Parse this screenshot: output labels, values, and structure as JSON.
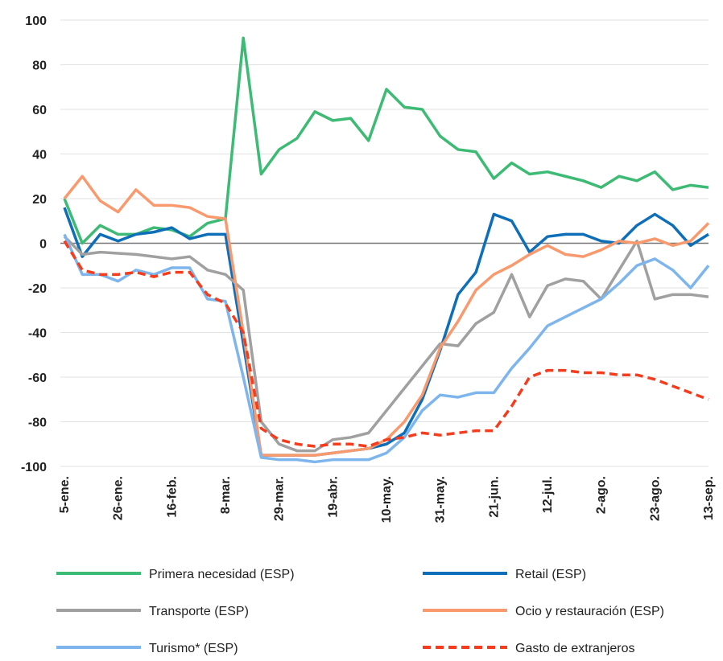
{
  "chart_data": {
    "type": "line",
    "categories": [
      "5-ene.",
      null,
      null,
      "26-ene.",
      null,
      null,
      "16-feb.",
      null,
      null,
      "8-mar.",
      null,
      null,
      "29-mar.",
      null,
      null,
      "19-abr.",
      null,
      null,
      "10-may.",
      null,
      null,
      "31-may.",
      null,
      null,
      "21-jun.",
      null,
      null,
      "12-jul.",
      null,
      null,
      "2-ago.",
      null,
      null,
      "23-ago.",
      null,
      null,
      "13-sep."
    ],
    "series": [
      {
        "name": "Primera necesidad (ESP)",
        "color": "#3dbb74",
        "dash": false,
        "values": [
          20,
          0,
          8,
          4,
          4,
          7,
          6,
          3,
          9,
          11,
          92,
          31,
          42,
          47,
          59,
          55,
          56,
          46,
          69,
          61,
          60,
          48,
          42,
          41,
          29,
          36,
          31,
          32,
          30,
          28,
          25,
          30,
          28,
          32,
          24,
          26,
          25
        ]
      },
      {
        "name": "Retail (ESP)",
        "color": "#0e6fb8",
        "dash": false,
        "values": [
          16,
          -6,
          4,
          1,
          4,
          5,
          7,
          2,
          4,
          4,
          -45,
          -95,
          -95,
          -95,
          -95,
          -94,
          -93,
          -92,
          -90,
          -85,
          -70,
          -48,
          -23,
          -13,
          13,
          10,
          -4,
          3,
          4,
          4,
          1,
          0,
          8,
          13,
          8,
          -1,
          4
        ]
      },
      {
        "name": "Transporte (ESP)",
        "color": "#a0a0a0",
        "dash": false,
        "values": [
          3,
          -5,
          -4,
          -4.5,
          -5,
          -6,
          -7,
          -6,
          -12,
          -14,
          -21,
          -80,
          -90,
          -93,
          -93,
          -88,
          -87,
          -85,
          -75,
          -65,
          -55,
          -45,
          -46,
          -36,
          -31,
          -14,
          -33,
          -19,
          -16,
          -17,
          -25,
          -12,
          1,
          -25,
          -23,
          -23,
          -24
        ]
      },
      {
        "name": "Ocio y restauración (ESP)",
        "color": "#f99a6e",
        "dash": false,
        "values": [
          20,
          30,
          19,
          14,
          24,
          17,
          17,
          16,
          12,
          11,
          -40,
          -95,
          -95,
          -95,
          -95,
          -94,
          -93,
          -92,
          -88,
          -80,
          -68,
          -47,
          -35,
          -21,
          -14,
          -10,
          -5,
          -1,
          -5,
          -6,
          -3,
          1,
          0,
          2,
          -1,
          1,
          9
        ]
      },
      {
        "name": "Turismo* (ESP)",
        "color": "#7db5ec",
        "dash": false,
        "values": [
          4,
          -14,
          -14,
          -17,
          -12,
          -14,
          -11,
          -11,
          -25,
          -26,
          -60,
          -96,
          -97,
          -97,
          -98,
          -97,
          -97,
          -97,
          -94,
          -87,
          -75,
          -68,
          -69,
          -67,
          -67,
          -56,
          -47,
          -37,
          -33,
          -29,
          -25,
          -18,
          -10,
          -7,
          -12,
          -20,
          -10
        ]
      },
      {
        "name": "Gasto de extranjeros",
        "color": "#f53c1c",
        "dash": true,
        "values": [
          1,
          -12,
          -14,
          -14,
          -13,
          -15,
          -13,
          -13,
          -23,
          -27,
          -40,
          -83,
          -88,
          -90,
          -91,
          -90,
          -90,
          -91,
          -88,
          -87,
          -85,
          -86,
          -85,
          -84,
          -84,
          -73,
          -60,
          -57,
          -57,
          -58,
          -58,
          -59,
          -59,
          -61,
          -64,
          -67,
          -70
        ]
      }
    ],
    "ylim": [
      -100,
      100
    ],
    "yticks": [
      -100,
      -80,
      -60,
      -40,
      -20,
      0,
      20,
      40,
      60,
      80,
      100
    ],
    "grid": true
  }
}
